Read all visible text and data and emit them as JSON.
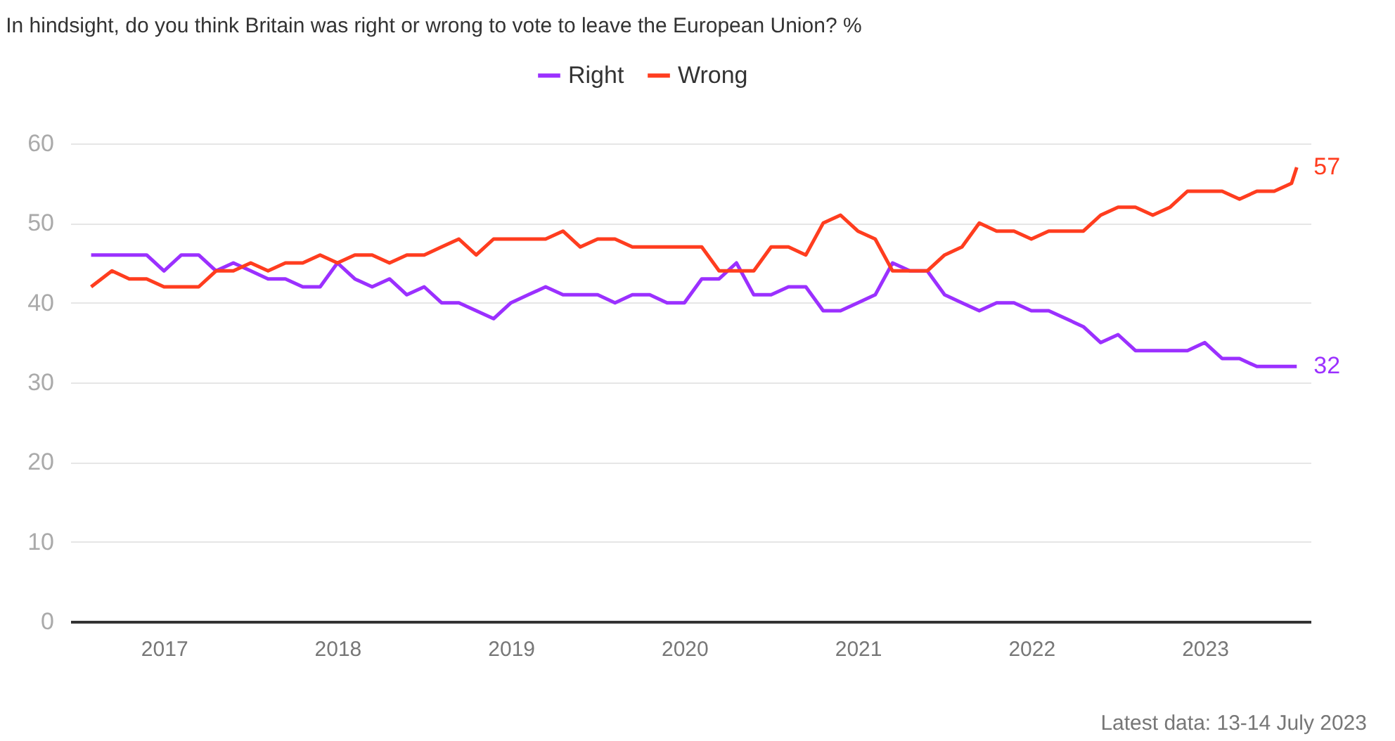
{
  "chart_data": {
    "type": "line",
    "title": "In hindsight, do you think Britain was right or wrong to vote to leave the European Union? %",
    "x": [
      2016.58,
      2016.7,
      2016.8,
      2016.9,
      2017.0,
      2017.1,
      2017.2,
      2017.3,
      2017.4,
      2017.5,
      2017.6,
      2017.7,
      2017.8,
      2017.9,
      2018.0,
      2018.1,
      2018.2,
      2018.3,
      2018.4,
      2018.5,
      2018.6,
      2018.7,
      2018.8,
      2018.9,
      2019.0,
      2019.1,
      2019.2,
      2019.3,
      2019.4,
      2019.5,
      2019.6,
      2019.7,
      2019.8,
      2019.9,
      2020.0,
      2020.1,
      2020.2,
      2020.3,
      2020.4,
      2020.5,
      2020.6,
      2020.7,
      2020.8,
      2020.9,
      2021.0,
      2021.1,
      2021.2,
      2021.3,
      2021.4,
      2021.5,
      2021.6,
      2021.7,
      2021.8,
      2021.9,
      2022.0,
      2022.1,
      2022.2,
      2022.3,
      2022.4,
      2022.5,
      2022.6,
      2022.7,
      2022.8,
      2022.9,
      2023.0,
      2023.1,
      2023.2,
      2023.3,
      2023.4,
      2023.5,
      2023.53
    ],
    "series": [
      {
        "name": "Right",
        "color": "#9b30ff",
        "values": [
          46,
          46,
          46,
          46,
          44,
          46,
          46,
          44,
          45,
          44,
          43,
          43,
          42,
          42,
          45,
          43,
          42,
          43,
          41,
          42,
          40,
          40,
          39,
          38,
          40,
          41,
          42,
          41,
          41,
          41,
          40,
          41,
          41,
          40,
          40,
          43,
          43,
          45,
          41,
          41,
          42,
          42,
          39,
          39,
          40,
          41,
          45,
          44,
          44,
          41,
          40,
          39,
          40,
          40,
          39,
          39,
          38,
          37,
          35,
          36,
          34,
          34,
          34,
          34,
          35,
          33,
          33,
          32,
          32,
          32,
          32
        ]
      },
      {
        "name": "Wrong",
        "color": "#ff3d1f",
        "values": [
          42,
          44,
          43,
          43,
          42,
          42,
          42,
          44,
          44,
          45,
          44,
          45,
          45,
          46,
          45,
          46,
          46,
          45,
          46,
          46,
          47,
          48,
          46,
          48,
          48,
          48,
          48,
          49,
          47,
          48,
          48,
          47,
          47,
          47,
          47,
          47,
          44,
          44,
          44,
          47,
          47,
          46,
          50,
          51,
          49,
          48,
          44,
          44,
          44,
          46,
          47,
          50,
          49,
          49,
          48,
          49,
          49,
          49,
          51,
          52,
          52,
          51,
          52,
          54,
          54,
          54,
          53,
          54,
          54,
          55,
          57
        ]
      }
    ],
    "xlim": [
      2016.46,
      2023.61
    ],
    "xticks": [
      2017,
      2018,
      2019,
      2020,
      2021,
      2022,
      2023
    ],
    "ylim": [
      0,
      60
    ],
    "yticks": [
      0,
      10,
      20,
      30,
      40,
      50,
      60
    ],
    "grid": "y",
    "legend": "top",
    "annotations": [
      {
        "text": "57",
        "x": 2023.53,
        "y": 57
      },
      {
        "text": "32",
        "x": 2023.53,
        "y": 32
      },
      "Latest data: 13-14 July 2023"
    ]
  }
}
